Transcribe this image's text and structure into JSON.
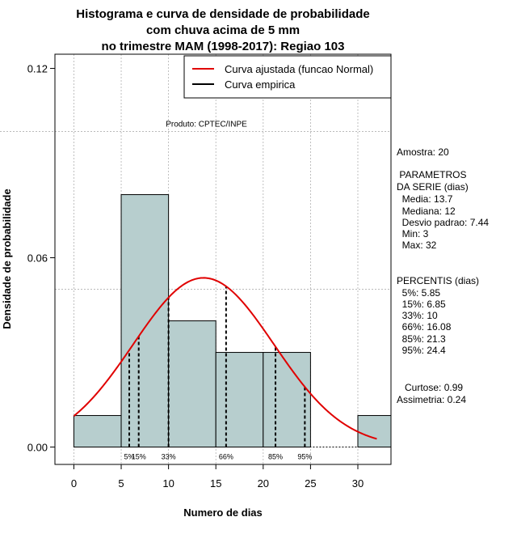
{
  "chart_data": {
    "type": "bar",
    "title_lines": [
      "Histograma e curva de densidade de probabilidade",
      "com chuva acima de 5 mm",
      "no trimestre MAM (1998-2017): Regiao 103"
    ],
    "xlabel": "Numero de dias",
    "ylabel": "Densidade de probabilidade",
    "xlim": [
      -2,
      33.5
    ],
    "ylim": [
      -0.0055,
      0.1245
    ],
    "x_ticks": [
      0,
      5,
      10,
      15,
      20,
      25,
      30
    ],
    "y_ticks": [
      0.0,
      0.06,
      0.12
    ],
    "y_tick_labels": [
      "0.00",
      "0.06",
      "0.12"
    ],
    "bins": [
      {
        "from": 0,
        "to": 5,
        "density": 0.01
      },
      {
        "from": 5,
        "to": 10,
        "density": 0.08
      },
      {
        "from": 10,
        "to": 15,
        "density": 0.04
      },
      {
        "from": 15,
        "to": 20,
        "density": 0.03
      },
      {
        "from": 20,
        "to": 25,
        "density": 0.03
      },
      {
        "from": 25,
        "to": 30,
        "density": 0.0
      },
      {
        "from": 30,
        "to": 35,
        "density": 0.01
      }
    ],
    "bar_color": "#b7cece",
    "curve": {
      "type": "normal",
      "mean": 13.7,
      "sd": 7.44,
      "x_from": 0,
      "x_to": 32,
      "color": "#e00000"
    },
    "percentile_lines": [
      {
        "label": "5%",
        "x": 5.85
      },
      {
        "label": "15%",
        "x": 6.85
      },
      {
        "label": "33%",
        "x": 10
      },
      {
        "label": "66%",
        "x": 16.08
      },
      {
        "label": "85%",
        "x": 21.3
      },
      {
        "label": "95%",
        "x": 24.4
      }
    ],
    "grid_y": [
      0.1,
      0.05
    ],
    "legend": {
      "position": "top-right",
      "entries": [
        {
          "label": "Curva ajustada (funcao Normal)",
          "color": "#e00000"
        },
        {
          "label": "Curva empirica",
          "color": "#000000"
        }
      ]
    },
    "product_label": "Produto: CPTEC/INPE",
    "product_label_y": 0.1
  },
  "side_panel": {
    "amostra": "Amostra: 20",
    "parametros_title_1": " PARAMETROS",
    "parametros_title_2": "DA SERIE (dias)",
    "media": "  Media: 13.7",
    "mediana": "  Mediana: 12",
    "desvio": "  Desvio padrao: 7.44",
    "min": "  Min: 3",
    "max": "  Max: 32",
    "percentis_title": "PERCENTIS (dias)",
    "p5": "  5%: 5.85",
    "p15": "  15%: 6.85",
    "p33": "  33%: 10",
    "p66": "  66%: 16.08",
    "p85": "  85%: 21.3",
    "p95": "  95%: 24.4",
    "curtose": "   Curtose: 0.99",
    "assimetria": "Assimetria: 0.24"
  }
}
